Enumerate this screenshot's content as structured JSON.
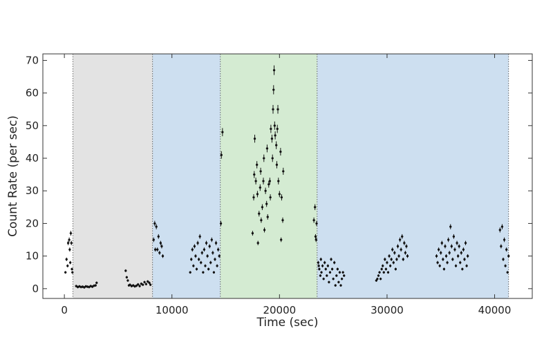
{
  "chart_data": {
    "type": "scatter",
    "xlabel": "Time (sec)",
    "ylabel": "Count Rate (per sec)",
    "xlim": [
      -2000,
      43500
    ],
    "ylim": [
      -3,
      72
    ],
    "x_ticks": [
      0,
      10000,
      20000,
      30000,
      40000
    ],
    "y_ticks": [
      0,
      10,
      20,
      30,
      40,
      50,
      60,
      70
    ],
    "grid": false,
    "colors": {
      "points": "#111111",
      "region_gray": "#e3e3e3",
      "region_blue": "#cddff0",
      "region_green": "#d4ebd2",
      "frame": "#333333"
    },
    "regions": [
      {
        "x_start": 800,
        "x_end": 8200,
        "color": "#e3e3e3"
      },
      {
        "x_start": 8200,
        "x_end": 14500,
        "color": "#cddff0"
      },
      {
        "x_start": 14500,
        "x_end": 23500,
        "color": "#d4ebd2"
      },
      {
        "x_start": 23500,
        "x_end": 41300,
        "color": "#cddff0"
      }
    ],
    "series": [
      {
        "points": [
          [
            100,
            5
          ],
          [
            200,
            9
          ],
          [
            300,
            7
          ],
          [
            350,
            14
          ],
          [
            450,
            15
          ],
          [
            500,
            12
          ],
          [
            550,
            8
          ],
          [
            600,
            17
          ],
          [
            650,
            14
          ],
          [
            700,
            6
          ],
          [
            750,
            5
          ],
          [
            1100,
            0.8
          ],
          [
            1250,
            0.5
          ],
          [
            1400,
            0.7
          ],
          [
            1550,
            0.5
          ],
          [
            1700,
            0.6
          ],
          [
            1850,
            0.4
          ],
          [
            2000,
            0.7
          ],
          [
            2150,
            0.6
          ],
          [
            2300,
            0.5
          ],
          [
            2450,
            0.8
          ],
          [
            2600,
            0.6
          ],
          [
            2750,
            0.9
          ],
          [
            2900,
            1
          ],
          [
            3000,
            1.8
          ],
          [
            5700,
            5.5
          ],
          [
            5800,
            3.5
          ],
          [
            5900,
            2.5
          ],
          [
            6000,
            1
          ],
          [
            6100,
            1.2
          ],
          [
            6250,
            0.8
          ],
          [
            6400,
            1
          ],
          [
            6550,
            0.7
          ],
          [
            6700,
            0.9
          ],
          [
            6850,
            1.3
          ],
          [
            7000,
            0.8
          ],
          [
            7150,
            1.5
          ],
          [
            7300,
            1.2
          ],
          [
            7450,
            2
          ],
          [
            7600,
            1.4
          ],
          [
            7750,
            2.2
          ],
          [
            7900,
            1.8
          ],
          [
            8000,
            1.2
          ],
          [
            8300,
            15
          ],
          [
            8400,
            20
          ],
          [
            8450,
            12
          ],
          [
            8550,
            19
          ],
          [
            8650,
            12
          ],
          [
            8750,
            16
          ],
          [
            8850,
            11
          ],
          [
            8950,
            14
          ],
          [
            9050,
            13
          ],
          [
            9150,
            10
          ],
          [
            11700,
            5
          ],
          [
            11800,
            9
          ],
          [
            11900,
            12
          ],
          [
            12000,
            7
          ],
          [
            12100,
            13
          ],
          [
            12200,
            10
          ],
          [
            12300,
            6
          ],
          [
            12400,
            14
          ],
          [
            12500,
            9
          ],
          [
            12600,
            16
          ],
          [
            12700,
            8
          ],
          [
            12800,
            11
          ],
          [
            12900,
            5
          ],
          [
            13000,
            12
          ],
          [
            13100,
            7
          ],
          [
            13200,
            14
          ],
          [
            13300,
            10
          ],
          [
            13400,
            6
          ],
          [
            13500,
            13
          ],
          [
            13600,
            8
          ],
          [
            13700,
            15
          ],
          [
            13800,
            11
          ],
          [
            13900,
            5
          ],
          [
            14000,
            9
          ],
          [
            14100,
            14
          ],
          [
            14200,
            7
          ],
          [
            14300,
            12
          ],
          [
            14400,
            10
          ],
          [
            14550,
            20
          ],
          [
            14600,
            41
          ],
          [
            14700,
            48
          ],
          [
            17500,
            17
          ],
          [
            17600,
            28
          ],
          [
            17650,
            35
          ],
          [
            17700,
            46
          ],
          [
            17800,
            33
          ],
          [
            17900,
            38
          ],
          [
            17950,
            29
          ],
          [
            18000,
            14
          ],
          [
            18100,
            23
          ],
          [
            18200,
            31
          ],
          [
            18250,
            36
          ],
          [
            18300,
            21
          ],
          [
            18400,
            25
          ],
          [
            18500,
            33
          ],
          [
            18550,
            40
          ],
          [
            18600,
            18
          ],
          [
            18700,
            30
          ],
          [
            18800,
            26
          ],
          [
            18850,
            43
          ],
          [
            18900,
            22
          ],
          [
            19000,
            32
          ],
          [
            19100,
            33
          ],
          [
            19150,
            28
          ],
          [
            19200,
            49
          ],
          [
            19300,
            46
          ],
          [
            19350,
            40
          ],
          [
            19400,
            55
          ],
          [
            19450,
            61
          ],
          [
            19500,
            67
          ],
          [
            19550,
            50
          ],
          [
            19600,
            47
          ],
          [
            19700,
            44
          ],
          [
            19750,
            38
          ],
          [
            19800,
            49
          ],
          [
            19850,
            55
          ],
          [
            19900,
            33
          ],
          [
            20000,
            29
          ],
          [
            20100,
            42
          ],
          [
            20150,
            15
          ],
          [
            20200,
            28
          ],
          [
            20300,
            21
          ],
          [
            20350,
            36
          ],
          [
            23200,
            21
          ],
          [
            23300,
            25
          ],
          [
            23350,
            16
          ],
          [
            23400,
            15
          ],
          [
            23450,
            20
          ],
          [
            23600,
            8
          ],
          [
            23650,
            7
          ],
          [
            23700,
            6
          ],
          [
            23800,
            4
          ],
          [
            23850,
            9
          ],
          [
            23900,
            5
          ],
          [
            24000,
            7
          ],
          [
            24100,
            3
          ],
          [
            24200,
            8
          ],
          [
            24300,
            6
          ],
          [
            24400,
            4
          ],
          [
            24500,
            7
          ],
          [
            24600,
            2
          ],
          [
            24700,
            5
          ],
          [
            24800,
            9
          ],
          [
            24900,
            6
          ],
          [
            25000,
            3
          ],
          [
            25100,
            8
          ],
          [
            25200,
            1
          ],
          [
            25300,
            4
          ],
          [
            25400,
            6
          ],
          [
            25500,
            2
          ],
          [
            25600,
            5
          ],
          [
            25700,
            1
          ],
          [
            25800,
            3
          ],
          [
            25900,
            5
          ],
          [
            26000,
            4
          ],
          [
            29000,
            2.5
          ],
          [
            29100,
            3
          ],
          [
            29200,
            4
          ],
          [
            29300,
            5
          ],
          [
            29400,
            3
          ],
          [
            29500,
            6
          ],
          [
            29600,
            7
          ],
          [
            29700,
            5
          ],
          [
            29800,
            9
          ],
          [
            29900,
            6
          ],
          [
            30000,
            8
          ],
          [
            30100,
            5
          ],
          [
            30200,
            10
          ],
          [
            30300,
            7
          ],
          [
            30400,
            9
          ],
          [
            30500,
            12
          ],
          [
            30600,
            8
          ],
          [
            30700,
            11
          ],
          [
            30800,
            6
          ],
          [
            30900,
            9
          ],
          [
            31000,
            13
          ],
          [
            31100,
            10
          ],
          [
            31200,
            15
          ],
          [
            31300,
            12
          ],
          [
            31400,
            16
          ],
          [
            31500,
            9
          ],
          [
            31600,
            14
          ],
          [
            31700,
            11
          ],
          [
            31800,
            13
          ],
          [
            31900,
            10
          ],
          [
            34600,
            10
          ],
          [
            34700,
            8
          ],
          [
            34800,
            12
          ],
          [
            34900,
            7
          ],
          [
            35000,
            11
          ],
          [
            35100,
            14
          ],
          [
            35200,
            9
          ],
          [
            35300,
            6
          ],
          [
            35400,
            13
          ],
          [
            35500,
            10
          ],
          [
            35600,
            8
          ],
          [
            35700,
            15
          ],
          [
            35800,
            11
          ],
          [
            35900,
            19
          ],
          [
            36000,
            13
          ],
          [
            36100,
            9
          ],
          [
            36200,
            16
          ],
          [
            36300,
            12
          ],
          [
            36400,
            7
          ],
          [
            36500,
            14
          ],
          [
            36600,
            10
          ],
          [
            36700,
            13
          ],
          [
            36800,
            8
          ],
          [
            36900,
            11
          ],
          [
            37000,
            6
          ],
          [
            37100,
            12
          ],
          [
            37200,
            9
          ],
          [
            37300,
            14
          ],
          [
            37400,
            7
          ],
          [
            37500,
            10
          ],
          [
            40500,
            18
          ],
          [
            40600,
            13
          ],
          [
            40700,
            19
          ],
          [
            40800,
            9
          ],
          [
            40900,
            15
          ],
          [
            41000,
            7
          ],
          [
            41100,
            12
          ],
          [
            41200,
            5
          ],
          [
            41300,
            10
          ]
        ]
      }
    ]
  }
}
